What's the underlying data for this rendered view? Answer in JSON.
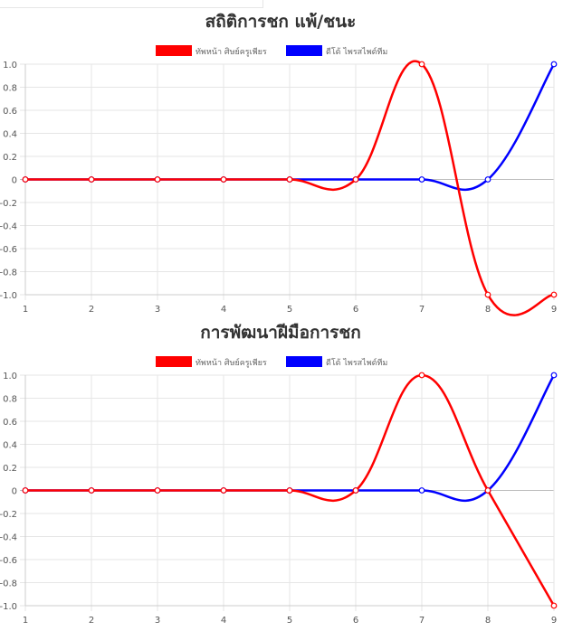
{
  "chart_data": [
    {
      "type": "line",
      "title": "สถิติการชก แพ้/ชนะ",
      "x": [
        1,
        2,
        3,
        4,
        5,
        6,
        7,
        8,
        9
      ],
      "series": [
        {
          "name": "ทัพหน้า ศิษย์ครูเพียร",
          "color": "#ff0000",
          "values": [
            0,
            0,
            0,
            0,
            0,
            0,
            1,
            -1,
            -1
          ]
        },
        {
          "name": "ดีโด้ ไพรสไพด์ทีม",
          "color": "#0000ff",
          "values": [
            0,
            0,
            0,
            0,
            0,
            0,
            0,
            0,
            1
          ]
        }
      ],
      "xlim": [
        1,
        9
      ],
      "ylim": [
        -1,
        1
      ],
      "yticks": [
        "1.0",
        "0.8",
        "0.6",
        "0.4",
        "0.2",
        "0",
        "-0.2",
        "-0.4",
        "-0.6",
        "-0.8",
        "-1.0"
      ],
      "xticks": [
        "1",
        "2",
        "3",
        "4",
        "5",
        "6",
        "7",
        "8",
        "9"
      ],
      "grid": true,
      "legend": "top-center",
      "smooth": true
    },
    {
      "type": "line",
      "title": "การพัฒนาฝีมือการชก",
      "x": [
        1,
        2,
        3,
        4,
        5,
        6,
        7,
        8,
        9
      ],
      "series": [
        {
          "name": "ทัพหน้า ศิษย์ครูเพียร",
          "color": "#ff0000",
          "values": [
            0,
            0,
            0,
            0,
            0,
            0,
            1,
            0,
            -1
          ]
        },
        {
          "name": "ดีโด้ ไพรสไพด์ทีม",
          "color": "#0000ff",
          "values": [
            0,
            0,
            0,
            0,
            0,
            0,
            0,
            0,
            1
          ]
        }
      ],
      "xlim": [
        1,
        9
      ],
      "ylim": [
        -1,
        1
      ],
      "yticks": [
        "1.0",
        "0.8",
        "0.6",
        "0.4",
        "0.2",
        "0",
        "-0.2",
        "-0.4",
        "-0.6",
        "-0.8",
        "-1.0"
      ],
      "xticks": [
        "1",
        "2",
        "3",
        "4",
        "5",
        "6",
        "7",
        "8",
        "9"
      ],
      "grid": true,
      "legend": "top-center",
      "smooth": true
    }
  ]
}
